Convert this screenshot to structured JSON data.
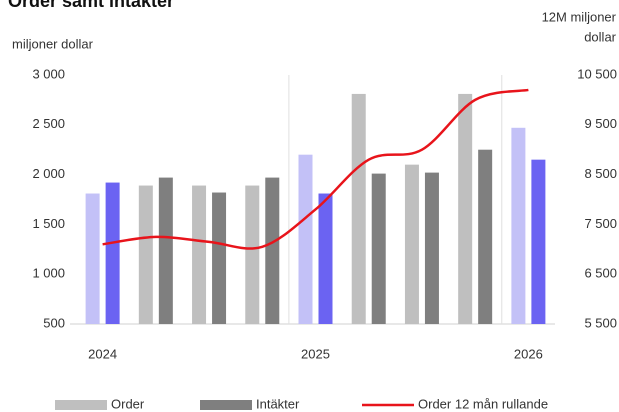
{
  "chart_data": {
    "type": "bar",
    "title": "Order samt intäkter",
    "y_label": "miljoner dollar",
    "y2_label": [
      "12M miljoner",
      "dollar"
    ],
    "categories": [
      "2024",
      null,
      null,
      null,
      "2025",
      null,
      null,
      null,
      "2026"
    ],
    "ylim": [
      500,
      3000
    ],
    "yticks": [
      {
        "value": 500,
        "label": "500"
      },
      {
        "value": 1000,
        "label": "1 000"
      },
      {
        "value": 1500,
        "label": "1 500"
      },
      {
        "value": 2000,
        "label": "2 000"
      },
      {
        "value": 2500,
        "label": "2 500"
      },
      {
        "value": 3000,
        "label": "3 000"
      }
    ],
    "y2lim": [
      5500,
      10500
    ],
    "y2ticks": [
      {
        "value": 5500,
        "label": "5 500"
      },
      {
        "value": 6500,
        "label": "6 500"
      },
      {
        "value": 7500,
        "label": "7 500"
      },
      {
        "value": 8500,
        "label": "8 500"
      },
      {
        "value": 9500,
        "label": "9 500"
      },
      {
        "value": 10500,
        "label": "10 500"
      }
    ],
    "series": [
      {
        "name": "Order",
        "type": "bar",
        "color": "#bfbfbf",
        "colors": [
          "#c3c1f7",
          "#bfbfbf",
          "#bfbfbf",
          "#bfbfbf",
          "#c3c1f7",
          "#bfbfbf",
          "#bfbfbf",
          "#bfbfbf",
          "#c3c1f7"
        ],
        "values": [
          1810,
          1890,
          1890,
          1890,
          2200,
          2810,
          2100,
          2810,
          2470
        ]
      },
      {
        "name": "Intäkter",
        "type": "bar",
        "color": "#7f7f7f",
        "colors": [
          "#6b63f2",
          "#7f7f7f",
          "#7f7f7f",
          "#7f7f7f",
          "#6b63f2",
          "#7f7f7f",
          "#7f7f7f",
          "#7f7f7f",
          "#6b63f2"
        ],
        "values": [
          1920,
          1970,
          1820,
          1970,
          1810,
          2010,
          2020,
          2250,
          2150
        ]
      },
      {
        "name": "Order  12 mån rullande",
        "type": "line",
        "axis": "y2",
        "color": "#e8141b",
        "values": [
          7100,
          7250,
          7150,
          7050,
          7800,
          8800,
          9000,
          10000,
          10200
        ]
      }
    ]
  }
}
